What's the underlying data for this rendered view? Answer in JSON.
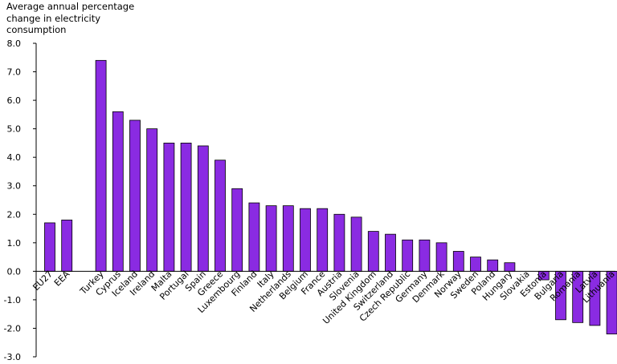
{
  "chart_data": {
    "type": "bar",
    "title": "",
    "ylabel_lines": [
      "Average annual percentage",
      "change in electricity",
      "consumption"
    ],
    "xlabel": "",
    "ylim": [
      -3.0,
      8.0
    ],
    "yticks": [
      "8.0",
      "7.0",
      "6.0",
      "5.0",
      "4.0",
      "3.0",
      "2.0",
      "1.0",
      "0.0",
      "-1.0",
      "-2.0",
      "-3.0"
    ],
    "ytick_values": [
      8,
      7,
      6,
      5,
      4,
      3,
      2,
      1,
      0,
      -1,
      -2,
      -3
    ],
    "bar_color": "#8a2be2",
    "grid": false,
    "groups": [
      {
        "categories": [
          "EU27",
          "EEA"
        ],
        "values": [
          1.7,
          1.8
        ]
      },
      {
        "categories": [
          "Turkey",
          "Cyprus",
          "Iceland",
          "Ireland",
          "Malta",
          "Portugal",
          "Spain",
          "Greece",
          "Luxembourg",
          "Finland",
          "Italy",
          "Netherlands",
          "Belgium",
          "France",
          "Austria",
          "Slovenia",
          "United Kingdom",
          "Switzerland",
          "Czech Republic",
          "Germany",
          "Denmark",
          "Norway",
          "Sweden",
          "Poland",
          "Hungary",
          "Slovakia",
          "Estonia",
          "Bulgaria",
          "Romania",
          "Latvia",
          "Lithuania"
        ],
        "values": [
          7.4,
          5.6,
          5.3,
          5.0,
          4.5,
          4.5,
          4.4,
          3.9,
          2.9,
          2.4,
          2.3,
          2.3,
          2.2,
          2.2,
          2.0,
          1.9,
          1.4,
          1.3,
          1.1,
          1.1,
          1.0,
          0.7,
          0.5,
          0.4,
          0.3,
          0.0,
          -0.3,
          -1.7,
          -1.8,
          -1.9,
          -2.2
        ]
      }
    ]
  }
}
